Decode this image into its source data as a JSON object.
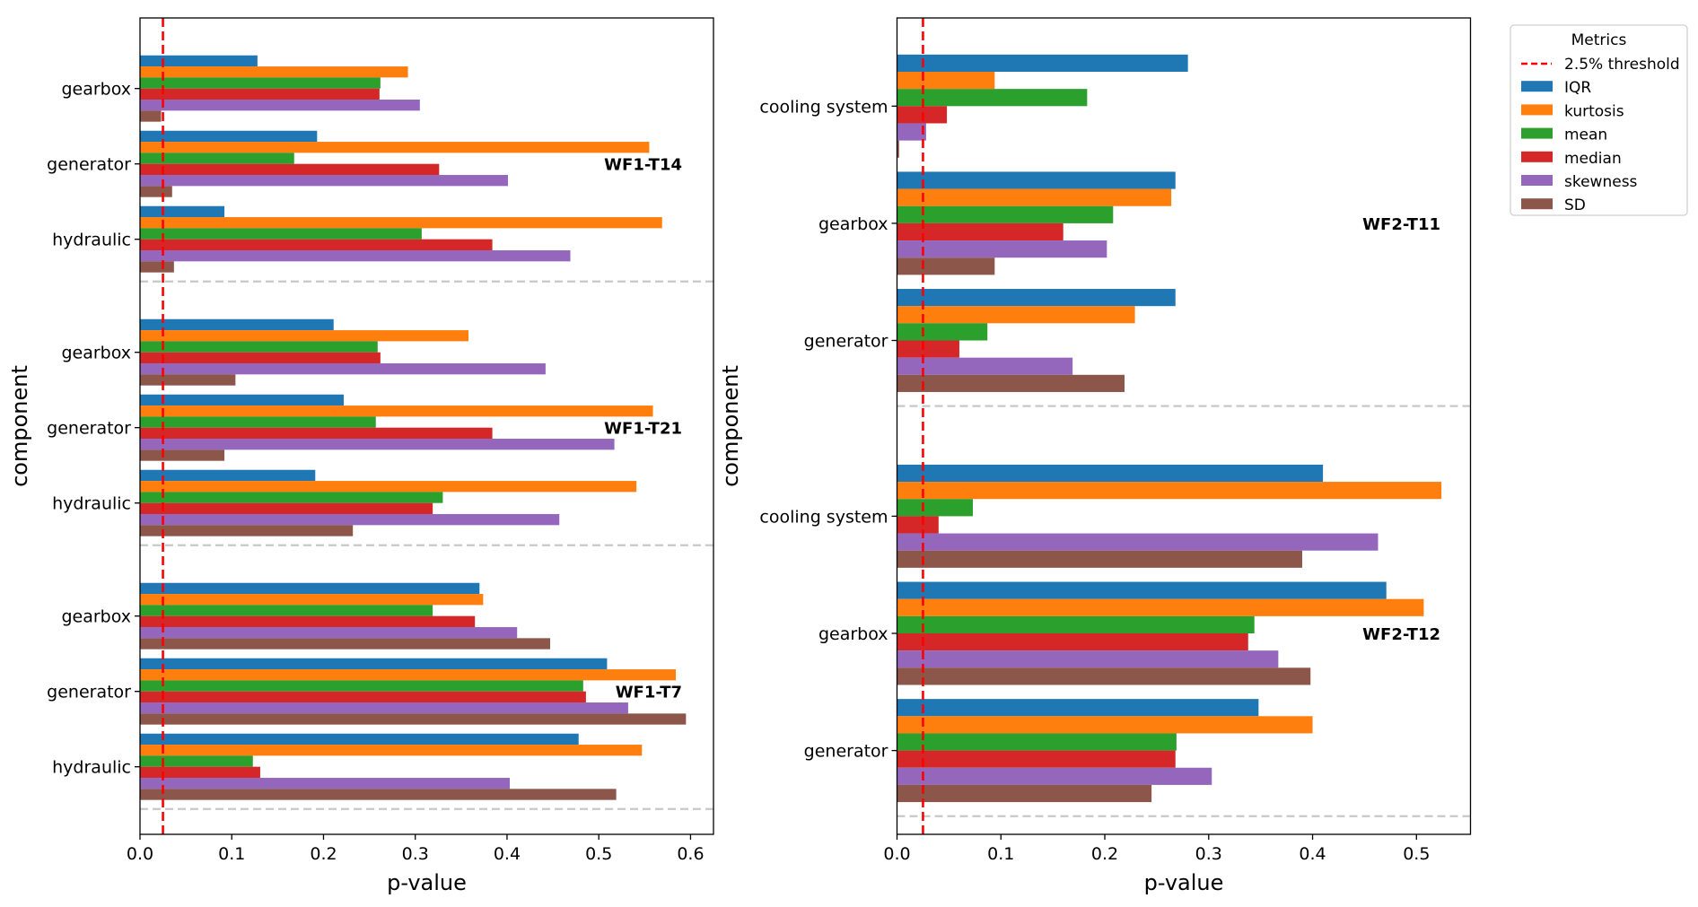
{
  "chart_data": [
    {
      "type": "bar",
      "orientation": "horizontal",
      "xlabel": "p-value",
      "ylabel": "component",
      "xlim": [
        0,
        0.625
      ],
      "xticks": [
        "0.0",
        "0.1",
        "0.2",
        "0.3",
        "0.4",
        "0.5",
        "0.6"
      ],
      "xtick_values": [
        0.0,
        0.1,
        0.2,
        0.3,
        0.4,
        0.5,
        0.6
      ],
      "threshold": 0.025,
      "groups": [
        {
          "name": "WF1-T14",
          "components": [
            {
              "name": "gearbox",
              "values": {
                "IQR": 0.128,
                "kurtosis": 0.292,
                "mean": 0.262,
                "median": 0.261,
                "skewness": 0.305,
                "SD": 0.023
              }
            },
            {
              "name": "generator",
              "values": {
                "IQR": 0.193,
                "kurtosis": 0.555,
                "mean": 0.168,
                "median": 0.326,
                "skewness": 0.401,
                "SD": 0.035
              }
            },
            {
              "name": "hydraulic",
              "values": {
                "IQR": 0.092,
                "kurtosis": 0.569,
                "mean": 0.307,
                "median": 0.384,
                "skewness": 0.469,
                "SD": 0.037
              }
            }
          ]
        },
        {
          "name": "WF1-T21",
          "components": [
            {
              "name": "gearbox",
              "values": {
                "IQR": 0.211,
                "kurtosis": 0.358,
                "mean": 0.259,
                "median": 0.262,
                "skewness": 0.442,
                "SD": 0.104
              }
            },
            {
              "name": "generator",
              "values": {
                "IQR": 0.222,
                "kurtosis": 0.559,
                "mean": 0.257,
                "median": 0.384,
                "skewness": 0.517,
                "SD": 0.092
              }
            },
            {
              "name": "hydraulic",
              "values": {
                "IQR": 0.191,
                "kurtosis": 0.541,
                "mean": 0.33,
                "median": 0.319,
                "skewness": 0.457,
                "SD": 0.232
              }
            }
          ]
        },
        {
          "name": "WF1-T7",
          "components": [
            {
              "name": "gearbox",
              "values": {
                "IQR": 0.37,
                "kurtosis": 0.374,
                "mean": 0.319,
                "median": 0.365,
                "skewness": 0.411,
                "SD": 0.447
              }
            },
            {
              "name": "generator",
              "values": {
                "IQR": 0.509,
                "kurtosis": 0.584,
                "mean": 0.483,
                "median": 0.486,
                "skewness": 0.532,
                "SD": 0.595
              }
            },
            {
              "name": "hydraulic",
              "values": {
                "IQR": 0.478,
                "kurtosis": 0.547,
                "mean": 0.123,
                "median": 0.131,
                "skewness": 0.403,
                "SD": 0.519
              }
            }
          ]
        }
      ]
    },
    {
      "type": "bar",
      "orientation": "horizontal",
      "xlabel": "p-value",
      "ylabel": "component",
      "xlim": [
        0,
        0.552
      ],
      "xticks": [
        "0.0",
        "0.1",
        "0.2",
        "0.3",
        "0.4",
        "0.5"
      ],
      "xtick_values": [
        0.0,
        0.1,
        0.2,
        0.3,
        0.4,
        0.5
      ],
      "threshold": 0.025,
      "groups": [
        {
          "name": "WF2-T11",
          "components": [
            {
              "name": "cooling system",
              "values": {
                "IQR": 0.28,
                "kurtosis": 0.094,
                "mean": 0.183,
                "median": 0.048,
                "skewness": 0.028,
                "SD": 0.002
              }
            },
            {
              "name": "gearbox",
              "values": {
                "IQR": 0.268,
                "kurtosis": 0.264,
                "mean": 0.208,
                "median": 0.16,
                "skewness": 0.202,
                "SD": 0.094
              }
            },
            {
              "name": "generator",
              "values": {
                "IQR": 0.268,
                "kurtosis": 0.229,
                "mean": 0.087,
                "median": 0.06,
                "skewness": 0.169,
                "SD": 0.219
              }
            }
          ]
        },
        {
          "name": "WF2-T12",
          "components": [
            {
              "name": "cooling system",
              "values": {
                "IQR": 0.41,
                "kurtosis": 0.524,
                "mean": 0.073,
                "median": 0.04,
                "skewness": 0.463,
                "SD": 0.39
              }
            },
            {
              "name": "gearbox",
              "values": {
                "IQR": 0.471,
                "kurtosis": 0.507,
                "mean": 0.344,
                "median": 0.338,
                "skewness": 0.367,
                "SD": 0.398
              }
            },
            {
              "name": "generator",
              "values": {
                "IQR": 0.348,
                "kurtosis": 0.4,
                "mean": 0.269,
                "median": 0.268,
                "skewness": 0.303,
                "SD": 0.245
              }
            }
          ]
        }
      ]
    }
  ],
  "legend": {
    "title": "Metrics",
    "placement": "outside-top-right",
    "threshold_label": "2.5% threshold",
    "threshold_color": "#ff0000",
    "items": [
      {
        "name": "IQR",
        "color": "#1f77b4"
      },
      {
        "name": "kurtosis",
        "color": "#ff7f0e"
      },
      {
        "name": "mean",
        "color": "#2ca02c"
      },
      {
        "name": "median",
        "color": "#d62728"
      },
      {
        "name": "skewness",
        "color": "#9467bd"
      },
      {
        "name": "SD",
        "color": "#8c564b"
      }
    ]
  },
  "separator_color": "#c8c8c8"
}
